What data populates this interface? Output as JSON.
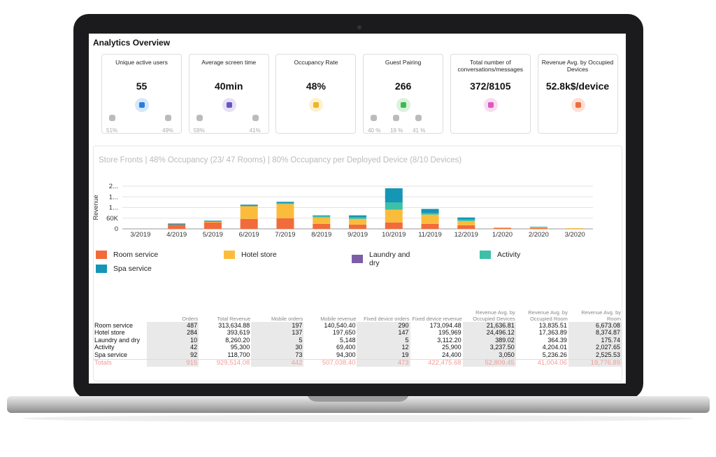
{
  "header": {
    "title": "Analytics Overview"
  },
  "cards": [
    {
      "title": "Unique active users",
      "value": "55",
      "platforms": [
        "51%",
        "49%"
      ]
    },
    {
      "title": "Average screen time",
      "value": "40min",
      "platforms": [
        "59%",
        "41%"
      ]
    },
    {
      "title": "Occupancy Rate",
      "value": "48%",
      "platforms": []
    },
    {
      "title": "Guest Pairing",
      "value": "266",
      "platforms": [
        "40 %",
        "19 %",
        "41 %"
      ]
    },
    {
      "title": "Total number of conversations/messages",
      "value": "372/8105",
      "platforms": []
    },
    {
      "title": "Revenue Avg. by Occupied Devices",
      "value": "52.8k$/device",
      "platforms": []
    }
  ],
  "chart_data": {
    "type": "stacked_bar",
    "subtitle": "Store Fronts | 48% Occupancy (23/ 47 Rooms) | 80% Occupancy per Deployed Device (8/10 Devices)",
    "y_label": "Revenue",
    "categories": [
      "3/2019",
      "4/2019",
      "5/2019",
      "6/2019",
      "7/2019",
      "8/2019",
      "9/2019",
      "10/2019",
      "11/2019",
      "12/2019",
      "1/2020",
      "2/2020",
      "3/2020"
    ],
    "series": [
      {
        "name": "Room service",
        "color": "#f26b3a",
        "values": [
          0,
          24000,
          36000,
          56000,
          60000,
          28000,
          24000,
          36000,
          28000,
          20000,
          4000,
          4000,
          0
        ]
      },
      {
        "name": "Hotel store",
        "color": "#fbbc3c",
        "values": [
          0,
          0,
          4000,
          72000,
          80000,
          36000,
          32000,
          72000,
          52000,
          24000,
          4000,
          4000,
          4000
        ]
      },
      {
        "name": "Laundry and dry",
        "color": "#7b5ea7",
        "values": [
          0,
          0,
          0,
          0,
          0,
          0,
          0,
          0,
          0,
          0,
          0,
          0,
          0
        ]
      },
      {
        "name": "Activity",
        "color": "#3cc0a8",
        "values": [
          0,
          0,
          0,
          0,
          4000,
          8000,
          8000,
          40000,
          8000,
          8000,
          0,
          4000,
          0
        ]
      },
      {
        "name": "Spa service",
        "color": "#1496b4",
        "values": [
          0,
          6000,
          6000,
          8000,
          8000,
          4000,
          12000,
          80000,
          24000,
          12000,
          0,
          0,
          0
        ]
      }
    ],
    "ylim": [
      0,
      240000
    ],
    "yticks": [
      0,
      {
        "value": 60000,
        "label": "60K"
      },
      {
        "value": 120000,
        "label": "1..."
      },
      {
        "value": 180000,
        "label": "1..."
      },
      {
        "value": 240000,
        "label": "2..."
      }
    ],
    "grid": true
  },
  "table": {
    "headers": [
      "Orders",
      "Total Revenue",
      "Mobile orders",
      "Mobile revenue",
      "Fixed device orders",
      "Fixed device revenue",
      "Revenue Avg. by Occupied Devices",
      "Revenue Avg. by Occupied Room",
      "Revenue Avg. by Room"
    ],
    "rows": [
      [
        "Room service",
        "487",
        "313,634.88",
        "197",
        "140,540.40",
        "290",
        "173,094.48",
        "21,636.81",
        "13,835.51",
        "6,673.08"
      ],
      [
        "Hotel store",
        "284",
        "393,619",
        "137",
        "197,650",
        "147",
        "195,969",
        "24,496.12",
        "17,363.89",
        "8,374.87"
      ],
      [
        "Laundry and dry",
        "10",
        "8,260.20",
        "5",
        "5,148",
        "5",
        "3,112.20",
        "389.02",
        "364.39",
        "175.74"
      ],
      [
        "Activity",
        "42",
        "95,300",
        "30",
        "69,400",
        "12",
        "25,900",
        "3,237.50",
        "4,204.01",
        "2,027.65"
      ],
      [
        "Spa service",
        "92",
        "118,700",
        "73",
        "94,300",
        "19",
        "24,400",
        "3,050",
        "5,236.26",
        "2,525.53"
      ]
    ],
    "totals": [
      "Totals",
      "915",
      "929,514.08",
      "442",
      "507,038.40",
      "473",
      "422,475.68",
      "52,809.45",
      "41,004.06",
      "19,776.89"
    ]
  }
}
